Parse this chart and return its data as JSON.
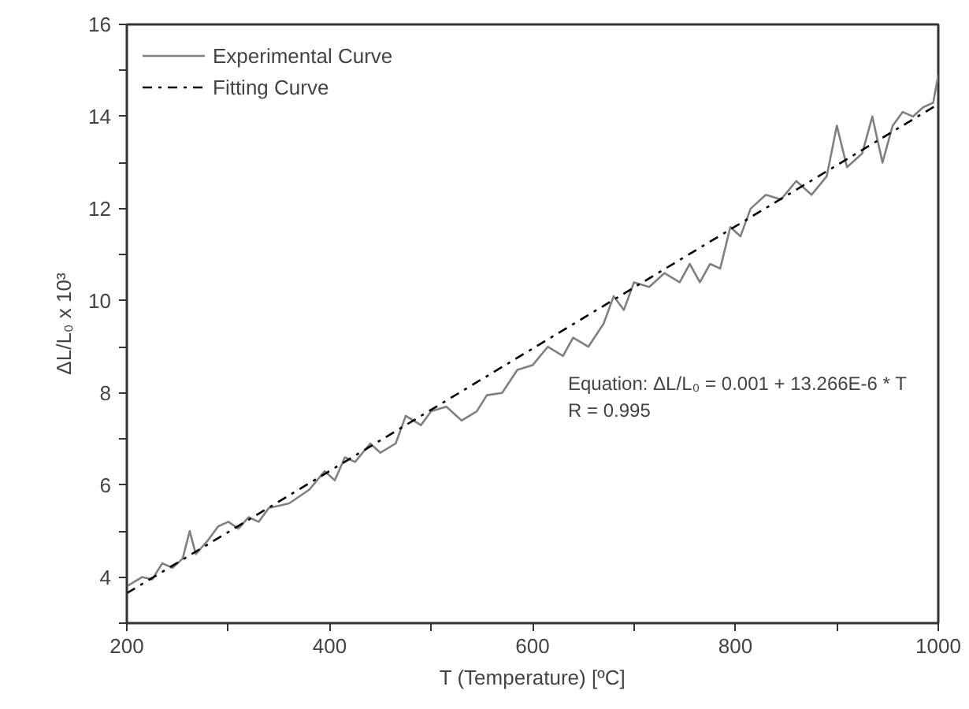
{
  "chart_data": {
    "type": "line",
    "xlabel": "T (Temperature) [ºC]",
    "ylabel": "ΔL/L₀ x 10³",
    "xlim": [
      200,
      1000
    ],
    "ylim": [
      3,
      16
    ],
    "xticks": [
      200,
      {
        "value": 300,
        "label": null
      },
      400,
      {
        "value": 500,
        "label": null
      },
      600,
      {
        "value": 700,
        "label": null
      },
      800,
      {
        "value": 900,
        "label": null
      },
      1000
    ],
    "yticks": [
      {
        "value": 3,
        "label": null
      },
      4,
      {
        "value": 5,
        "label": null
      },
      6,
      {
        "value": 7,
        "label": null
      },
      8,
      {
        "value": 9,
        "label": null
      },
      10,
      {
        "value": 11,
        "label": null
      },
      12,
      {
        "value": 13,
        "label": null
      },
      14,
      {
        "value": 15,
        "label": null
      },
      16
    ],
    "grid": false,
    "legend": "top left",
    "series": [
      {
        "name": "Experimental Curve",
        "color": "#808080",
        "line_style": "solid",
        "x": [
          200,
          215,
          225,
          235,
          245,
          255,
          262,
          268,
          280,
          290,
          300,
          310,
          320,
          330,
          340,
          350,
          360,
          380,
          395,
          405,
          415,
          425,
          440,
          450,
          465,
          475,
          490,
          500,
          515,
          530,
          545,
          555,
          570,
          585,
          600,
          615,
          630,
          640,
          655,
          670,
          680,
          690,
          700,
          715,
          730,
          745,
          755,
          765,
          775,
          785,
          795,
          805,
          815,
          830,
          845,
          860,
          875,
          890,
          900,
          910,
          925,
          935,
          945,
          955,
          965,
          975,
          985,
          995,
          1000
        ],
        "values": [
          3.8,
          4.0,
          3.95,
          4.3,
          4.2,
          4.4,
          5.0,
          4.5,
          4.8,
          5.1,
          5.2,
          5.05,
          5.3,
          5.2,
          5.5,
          5.55,
          5.6,
          5.9,
          6.3,
          6.1,
          6.6,
          6.5,
          6.9,
          6.7,
          6.9,
          7.5,
          7.3,
          7.6,
          7.7,
          7.4,
          7.6,
          7.95,
          8.0,
          8.5,
          8.6,
          9.0,
          8.8,
          9.2,
          9.0,
          9.5,
          10.1,
          9.8,
          10.4,
          10.3,
          10.6,
          10.4,
          10.8,
          10.4,
          10.8,
          10.7,
          11.6,
          11.4,
          12.0,
          12.3,
          12.2,
          12.6,
          12.3,
          12.7,
          13.8,
          12.9,
          13.2,
          14.0,
          13.0,
          13.8,
          14.1,
          14.0,
          14.2,
          14.3,
          14.9
        ]
      },
      {
        "name": "Fitting Curve",
        "color": "#000000",
        "line_style": "dashdot",
        "x": [
          200,
          1000
        ],
        "values": [
          3.65,
          14.27
        ]
      }
    ],
    "annotations": [
      "Equation: ΔL/L₀ = 0.001 + 13.266E-6 * T",
      "R = 0.995"
    ]
  }
}
